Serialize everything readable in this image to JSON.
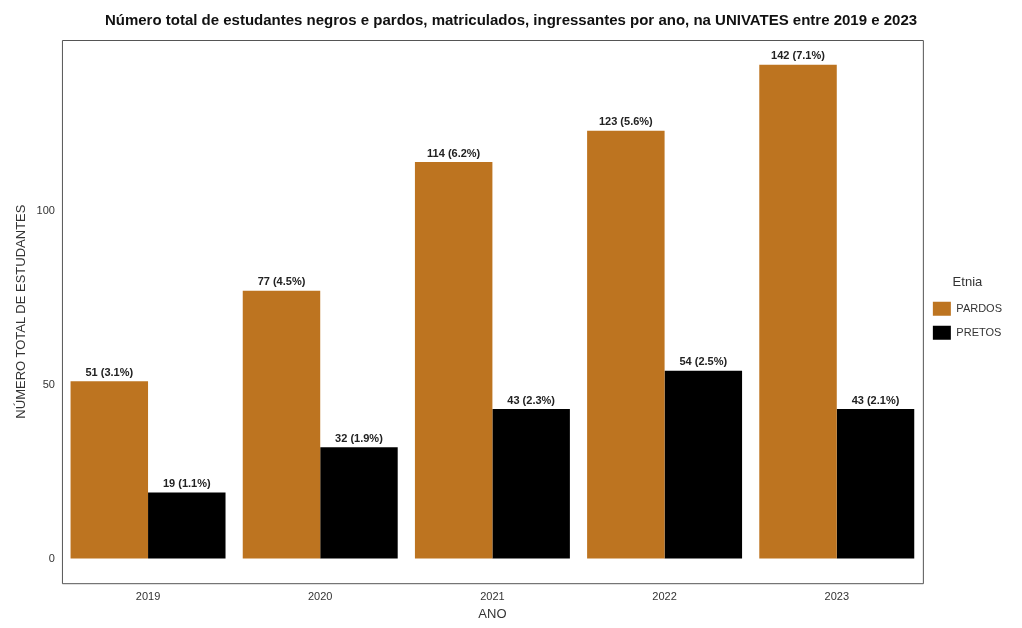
{
  "chart_data": {
    "type": "bar",
    "title": "Número total de estudantes negros e pardos, matriculados, ingressantes por ano, na UNIVATES entre 2019 e 2023",
    "xlabel": "ANO",
    "ylabel": "NÚMERO TOTAL DE ESTUDANTES",
    "legend_title": "Etnia",
    "categories": [
      "2019",
      "2020",
      "2021",
      "2022",
      "2023"
    ],
    "series": [
      {
        "name": "PARDOS",
        "color": "#bd7420",
        "values": [
          51,
          77,
          114,
          123,
          142
        ],
        "value_labels": [
          "51 (3.1%)",
          "77 (4.5%)",
          "114 (6.2%)",
          "123 (5.6%)",
          "142 (7.1%)"
        ]
      },
      {
        "name": "PRETOS",
        "color": "#000000",
        "values": [
          19,
          32,
          43,
          54,
          43
        ],
        "value_labels": [
          "19 (1.1%)",
          "32 (1.9%)",
          "43 (2.3%)",
          "54 (2.5%)",
          "43 (2.1%)"
        ]
      }
    ],
    "ylim": [
      -7.1,
      149.1
    ],
    "yticks": [
      0,
      50,
      100
    ],
    "grid": false,
    "legend": "right"
  }
}
